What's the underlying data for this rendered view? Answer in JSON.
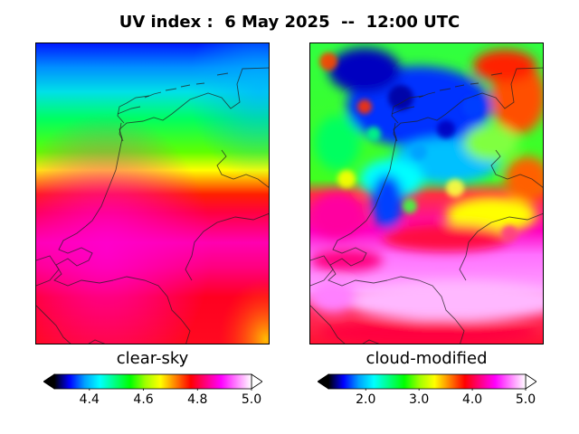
{
  "title": "UV index :  6 May 2025  --  12:00 UTC",
  "panels": [
    {
      "label": "clear-sky",
      "colorbar": {
        "ticks": [
          "4.4",
          "4.6",
          "4.8",
          "5.0"
        ],
        "tick_values": [
          4.4,
          4.6,
          4.8,
          5.0
        ],
        "min": 4.27,
        "max": 5.0,
        "extend": "both"
      }
    },
    {
      "label": "cloud-modified",
      "colorbar": {
        "ticks": [
          "2.0",
          "3.0",
          "4.0",
          "5.0"
        ],
        "tick_values": [
          2.0,
          3.0,
          4.0,
          5.0
        ],
        "min": 1.3,
        "max": 5.0,
        "extend": "both"
      }
    }
  ],
  "colormap": [
    "#000000",
    "#0000ff",
    "#00a0ff",
    "#00ffff",
    "#00ff80",
    "#00ff00",
    "#a0ff00",
    "#ffff00",
    "#ff8000",
    "#ff0000",
    "#ff0080",
    "#ff00ff",
    "#ff80ff",
    "#ffffff"
  ]
}
